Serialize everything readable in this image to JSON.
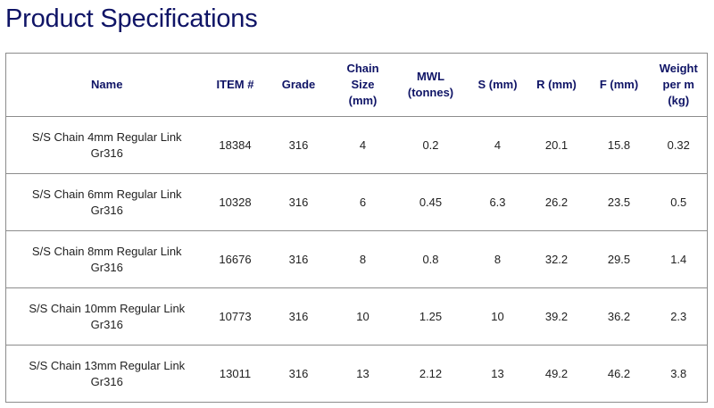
{
  "page": {
    "title": "Product Specifications"
  },
  "colors": {
    "title": "#0f1466",
    "header_text": "#0f1466",
    "body_text": "#222222",
    "border": "#8c8c8c"
  },
  "table": {
    "headers": [
      [
        "Name"
      ],
      [
        "ITEM #"
      ],
      [
        "Grade"
      ],
      [
        "Chain",
        "Size",
        "(mm)"
      ],
      [
        "MWL",
        "(tonnes)"
      ],
      [
        "S (mm)"
      ],
      [
        "R (mm)"
      ],
      [
        "F (mm)"
      ],
      [
        "Weight",
        "per m",
        "(kg)"
      ]
    ],
    "rows": [
      {
        "name": [
          "S/S Chain 4mm Regular Link",
          "Gr316"
        ],
        "item": "18384",
        "grade": "316",
        "size": "4",
        "mwl": "0.2",
        "s": "4",
        "r": "20.1",
        "f": "15.8",
        "weight": "0.32"
      },
      {
        "name": [
          "S/S Chain 6mm Regular Link",
          "Gr316"
        ],
        "item": "10328",
        "grade": "316",
        "size": "6",
        "mwl": "0.45",
        "s": "6.3",
        "r": "26.2",
        "f": "23.5",
        "weight": "0.5"
      },
      {
        "name": [
          "S/S Chain 8mm Regular Link",
          "Gr316"
        ],
        "item": "16676",
        "grade": "316",
        "size": "8",
        "mwl": "0.8",
        "s": "8",
        "r": "32.2",
        "f": "29.5",
        "weight": "1.4"
      },
      {
        "name": [
          "S/S Chain 10mm Regular Link",
          "Gr316"
        ],
        "item": "10773",
        "grade": "316",
        "size": "10",
        "mwl": "1.25",
        "s": "10",
        "r": "39.2",
        "f": "36.2",
        "weight": "2.3"
      },
      {
        "name": [
          "S/S Chain 13mm Regular Link",
          "Gr316"
        ],
        "item": "13011",
        "grade": "316",
        "size": "13",
        "mwl": "2.12",
        "s": "13",
        "r": "49.2",
        "f": "46.2",
        "weight": "3.8"
      }
    ]
  }
}
